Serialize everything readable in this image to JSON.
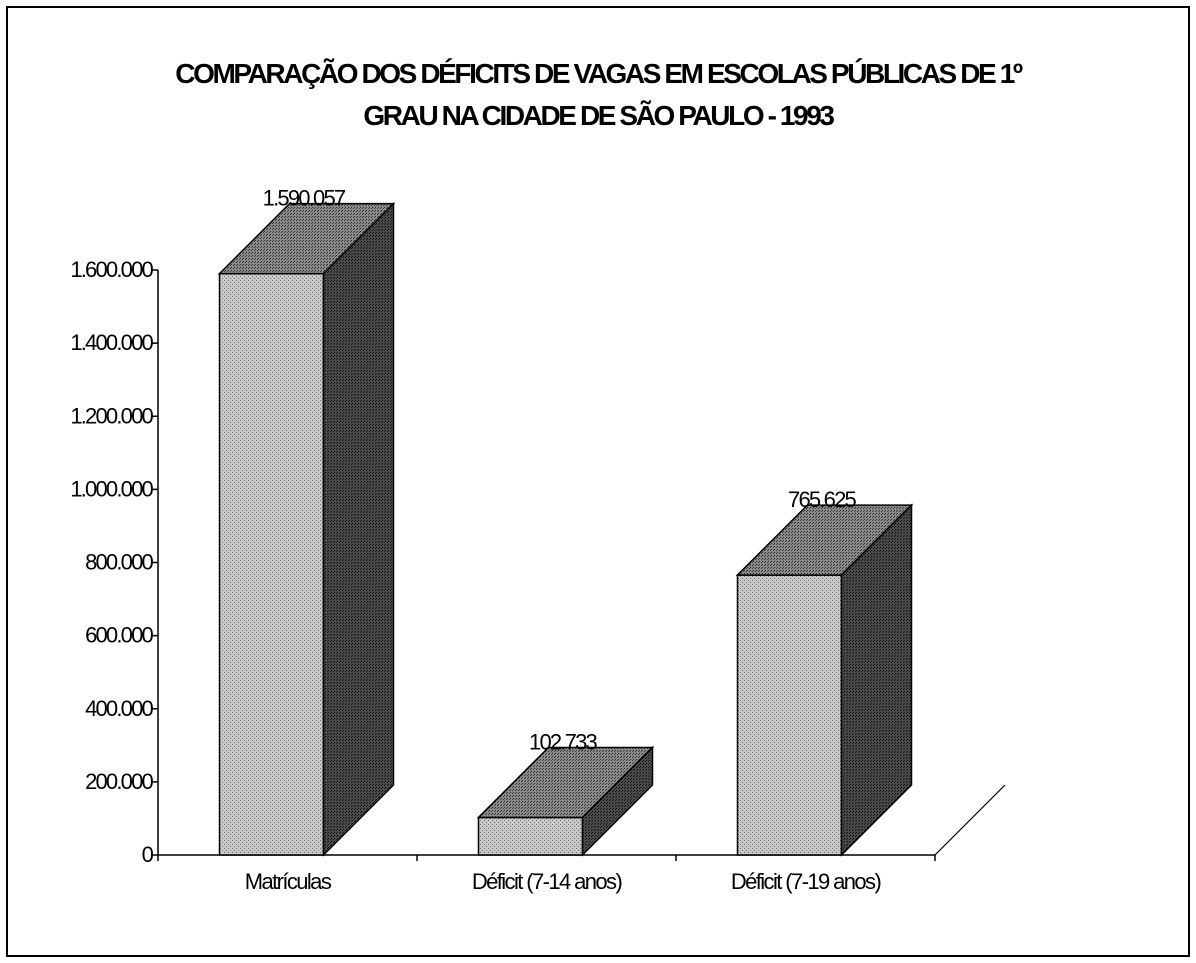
{
  "chart_data": {
    "type": "bar",
    "title_line1": "COMPARAÇÃO DOS DÉFICITS DE VAGAS EM ESCOLAS PÚBLICAS DE 1º",
    "title_line2": "GRAU NA CIDADE DE SÃO PAULO - 1993",
    "categories": [
      "Matrículas",
      "Déficit (7-14 anos)",
      "Déficit (7-19 anos)"
    ],
    "values": [
      1590057,
      102733,
      765625
    ],
    "data_labels": [
      "1.590.057",
      "102.733",
      "765.625"
    ],
    "ylim": [
      0,
      1600000
    ],
    "yticks": [
      0,
      200000,
      400000,
      600000,
      800000,
      1000000,
      1200000,
      1400000,
      1600000
    ],
    "ytick_labels": [
      "0",
      "200.000",
      "400.000",
      "600.000",
      "800.000",
      "1.000.000",
      "1.200.000",
      "1.400.000",
      "1.600.000"
    ],
    "bar_style": "3d",
    "grid": false,
    "legend": "none"
  }
}
